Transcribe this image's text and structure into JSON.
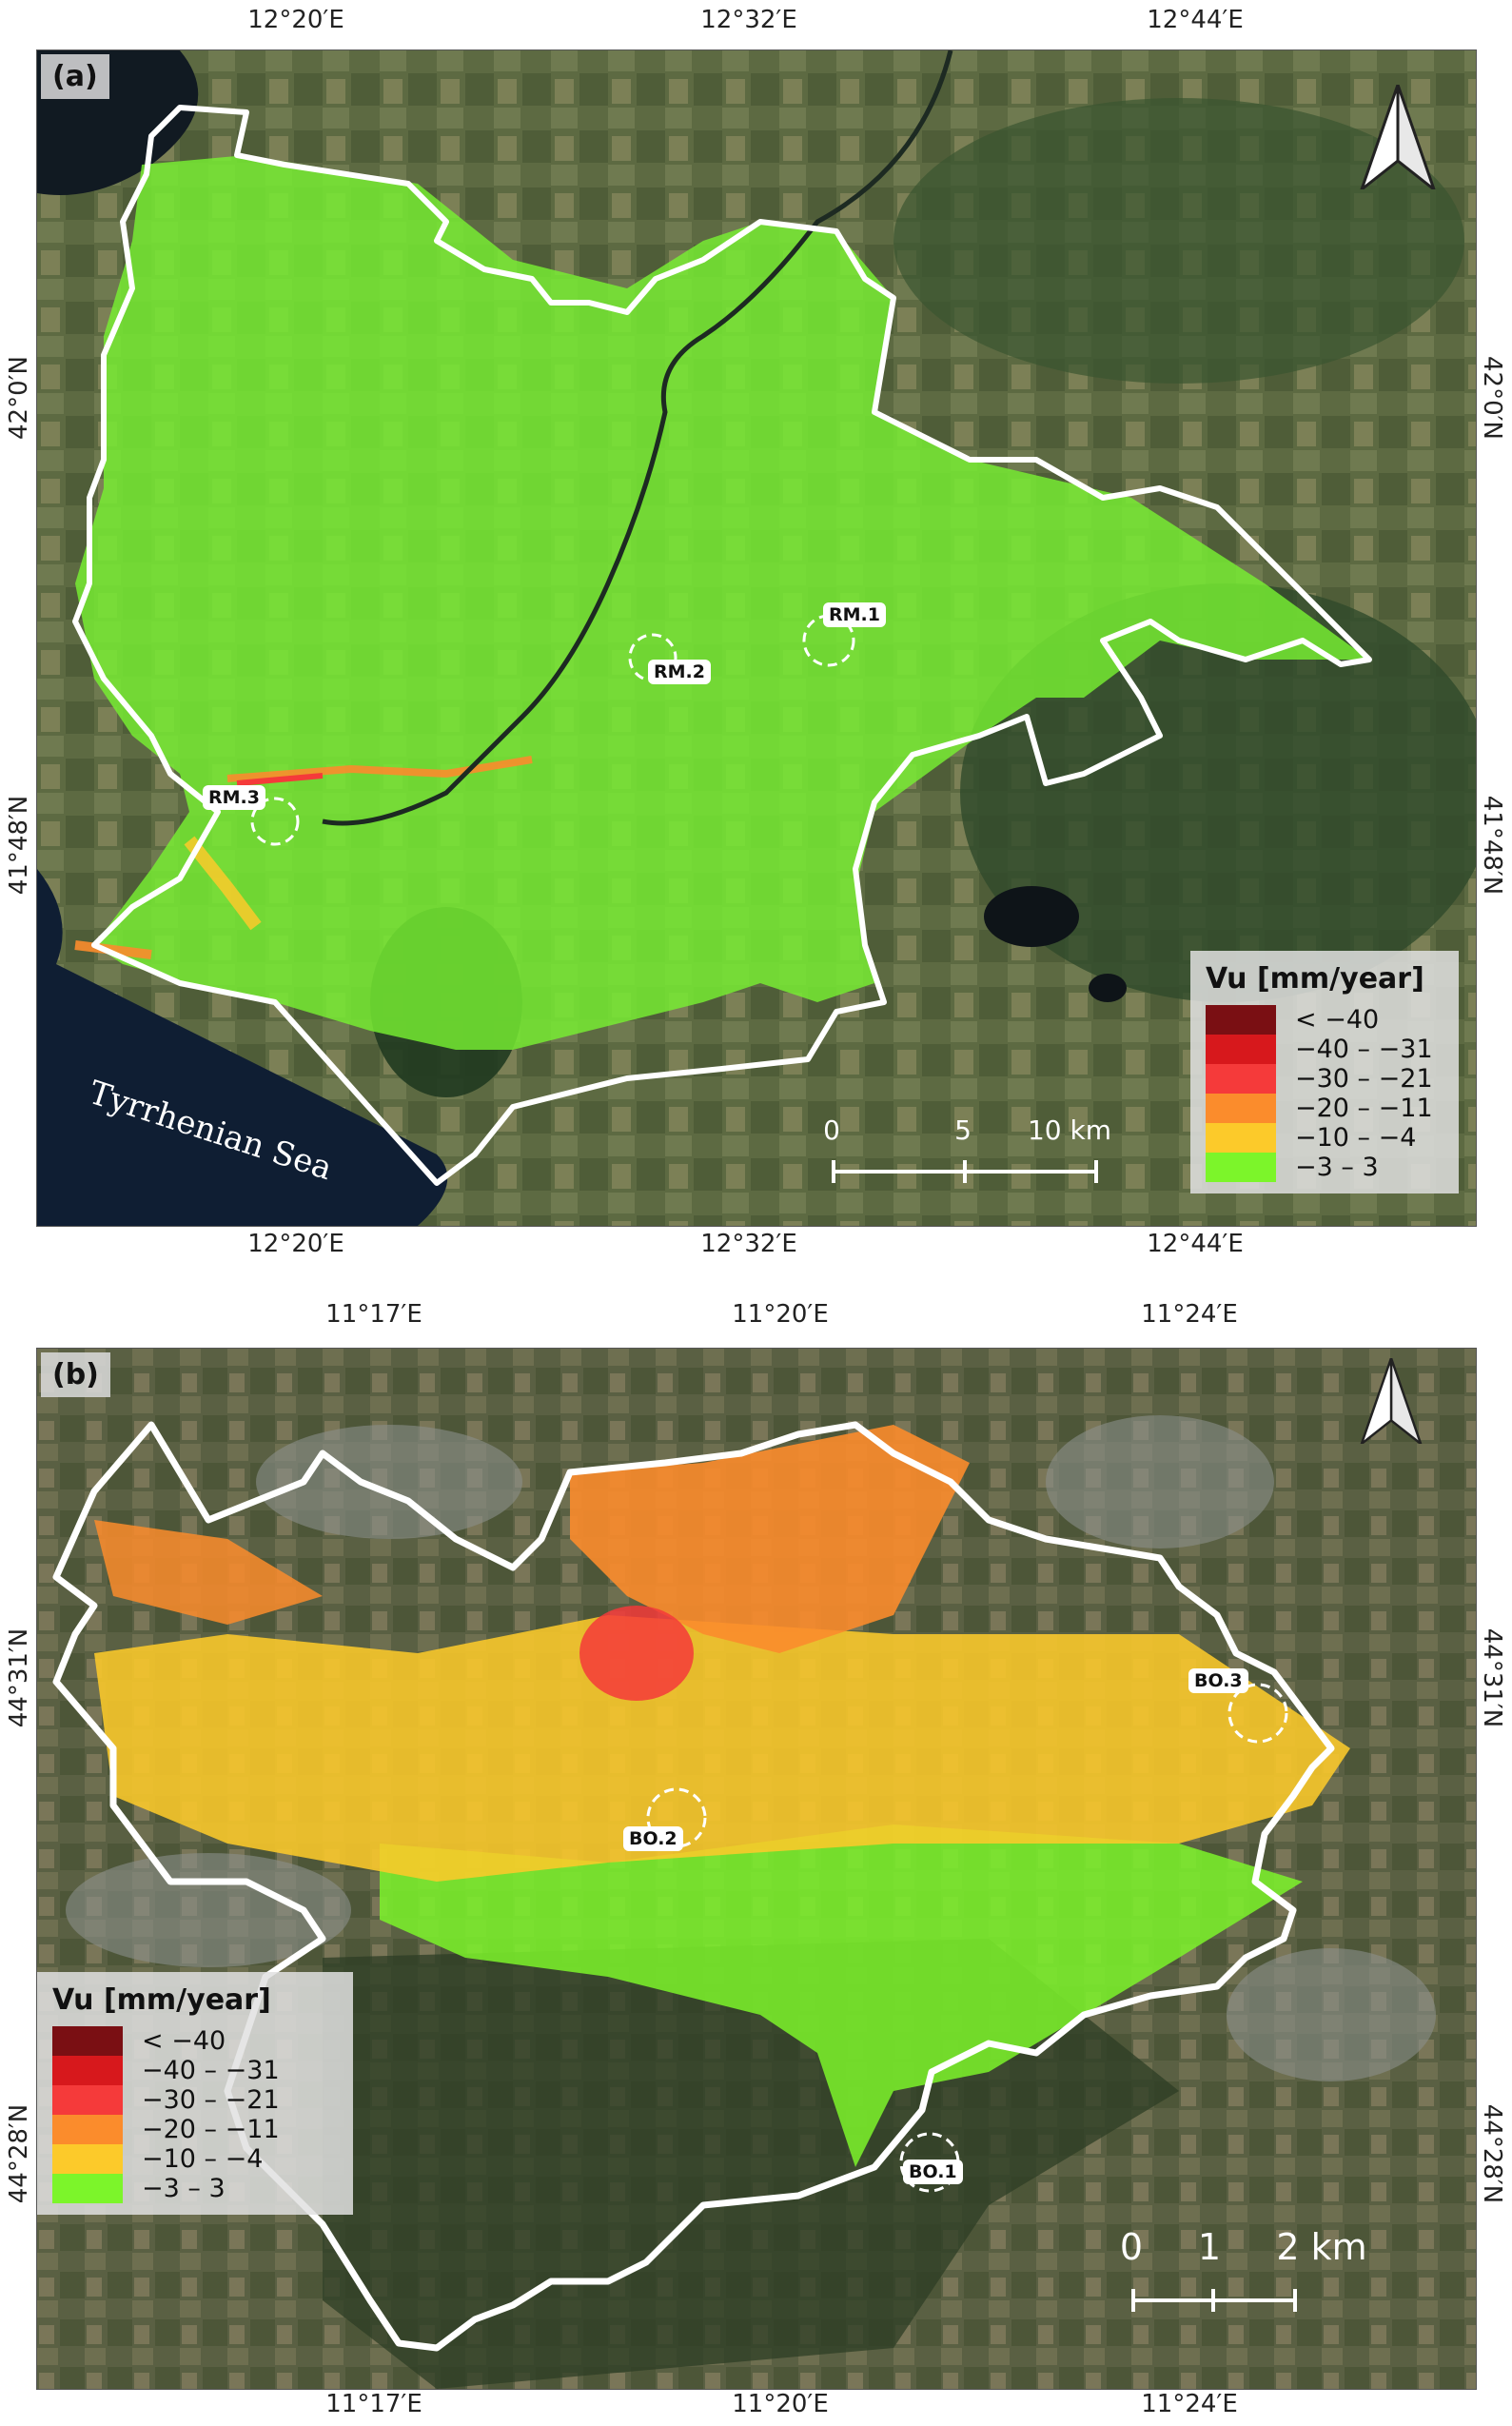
{
  "panel_a": {
    "label": "(a)",
    "top_ticks": [
      "12°20′E",
      "12°32′E",
      "12°44′E"
    ],
    "bottom_ticks": [
      "12°20′E",
      "12°32′E",
      "12°44′E"
    ],
    "left_ticks": [
      "42°0′N",
      "41°48′N"
    ],
    "right_ticks": [
      "42°0′N",
      "41°48′N"
    ],
    "sea_label": "Tyrrhenian Sea",
    "sites": [
      "RM.1",
      "RM.2",
      "RM.3"
    ],
    "scale": [
      "0",
      "5",
      "10 km"
    ]
  },
  "panel_b": {
    "label": "(b)",
    "top_ticks": [
      "11°17′E",
      "11°20′E",
      "11°24′E"
    ],
    "bottom_ticks": [
      "11°17′E",
      "11°20′E",
      "11°24′E"
    ],
    "left_ticks": [
      "44°31′N",
      "44°28′N"
    ],
    "right_ticks": [
      "44°31′N",
      "44°28′N"
    ],
    "sites": [
      "BO.1",
      "BO.2",
      "BO.3"
    ],
    "scale": [
      "0",
      "1",
      "2 km"
    ]
  },
  "legend": {
    "title": "Vu [mm/year]",
    "classes": [
      {
        "label": "< −40",
        "color": "#7a0f13"
      },
      {
        "label": "−40 – −31",
        "color": "#d7181c"
      },
      {
        "label": "−30 – −21",
        "color": "#f53a3a"
      },
      {
        "label": "−20 – −11",
        "color": "#fb8c2c"
      },
      {
        "label": "−10 – −4",
        "color": "#fcca2a"
      },
      {
        "label": "−3 – 3",
        "color": "#7cf52a"
      }
    ]
  },
  "colors": {
    "boundary": "#ffffff",
    "sea": "#0f1e33",
    "satellite_base": "#4d5a3a"
  }
}
